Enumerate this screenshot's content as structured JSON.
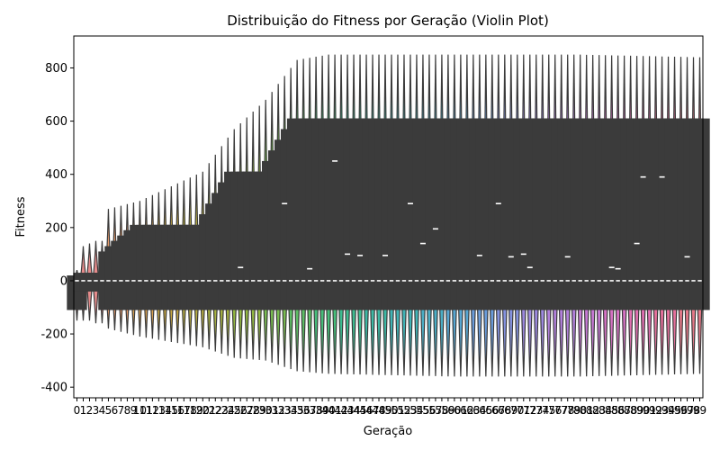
{
  "chart_data": {
    "type": "violin",
    "title": "Distribuição do Fitness por Geração (Violin Plot)",
    "xlabel": "Geração",
    "ylabel": "Fitness",
    "ylim": [
      -440,
      920
    ],
    "yticks": [
      -400,
      -200,
      0,
      200,
      400,
      600,
      800
    ],
    "categories": [
      0,
      1,
      2,
      3,
      4,
      5,
      6,
      7,
      8,
      9,
      10,
      11,
      12,
      13,
      14,
      15,
      16,
      17,
      18,
      19,
      20,
      21,
      22,
      23,
      24,
      25,
      26,
      27,
      28,
      29,
      30,
      31,
      32,
      33,
      34,
      35,
      36,
      37,
      38,
      39,
      40,
      41,
      42,
      43,
      44,
      45,
      46,
      47,
      48,
      49,
      50,
      51,
      52,
      53,
      54,
      55,
      56,
      57,
      58,
      59,
      60,
      61,
      62,
      63,
      64,
      65,
      66,
      67,
      68,
      69,
      70,
      71,
      72,
      73,
      74,
      75,
      76,
      77,
      78,
      79,
      80,
      81,
      82,
      83,
      84,
      85,
      86,
      87,
      88,
      89,
      90,
      91,
      92,
      93,
      94,
      95,
      96,
      97,
      98,
      99
    ],
    "palette": [
      "#e58b8b",
      "#e59a6a",
      "#d8a050",
      "#c8a840",
      "#b8ae40",
      "#a8b440",
      "#92b840",
      "#78bc50",
      "#5cbe64",
      "#46be7a",
      "#3cbc90",
      "#3cb8a4",
      "#40b4b6",
      "#4aaec6",
      "#56a6d2",
      "#6a9cdc",
      "#8492e0",
      "#9c88e0",
      "#b280dc",
      "#c678d4",
      "#d672c4",
      "#e06eb0",
      "#e6709c",
      "#e67888"
    ],
    "summary": [
      {
        "gen": 0,
        "max": 40,
        "min": -150,
        "q1": -110,
        "q3": 20,
        "median": 0
      },
      {
        "gen": 1,
        "max": 130,
        "min": -150,
        "q1": -40,
        "q3": 30,
        "median": 0
      },
      {
        "gen": 2,
        "max": 140,
        "min": -150,
        "q1": -40,
        "q3": 30,
        "median": 0
      },
      {
        "gen": 3,
        "max": 150,
        "min": -160,
        "q1": -40,
        "q3": 30,
        "median": 0
      },
      {
        "gen": 4,
        "max": 150,
        "min": -160,
        "q1": -40,
        "q3": 30,
        "median": 0
      },
      {
        "gen": 5,
        "max": 270,
        "min": -180,
        "q1": -110,
        "q3": 110,
        "median": 0
      },
      {
        "gen": 10,
        "max": 300,
        "min": -210,
        "q1": -110,
        "q3": 210,
        "median": 0
      },
      {
        "gen": 20,
        "max": 410,
        "min": -250,
        "q1": -110,
        "q3": 210,
        "median": 0
      },
      {
        "gen": 25,
        "max": 570,
        "min": -290,
        "q1": -110,
        "q3": 410,
        "median": 0
      },
      {
        "gen": 30,
        "max": 680,
        "min": -300,
        "q1": -110,
        "q3": 410,
        "median": 0
      },
      {
        "gen": 35,
        "max": 830,
        "min": -340,
        "q1": -110,
        "q3": 610,
        "median": 0
      },
      {
        "gen": 40,
        "max": 850,
        "min": -350,
        "q1": -110,
        "q3": 610,
        "median": 0
      },
      {
        "gen": 60,
        "max": 850,
        "min": -360,
        "q1": -110,
        "q3": 610,
        "median": 0
      },
      {
        "gen": 80,
        "max": 850,
        "min": -360,
        "q1": -110,
        "q3": 610,
        "median": 0
      },
      {
        "gen": 99,
        "max": 840,
        "min": -350,
        "q1": -110,
        "q3": 610,
        "median": 0
      }
    ],
    "mean_markers": [
      {
        "gen": 26,
        "value": 50
      },
      {
        "gen": 33,
        "value": 290
      },
      {
        "gen": 37,
        "value": 45
      },
      {
        "gen": 41,
        "value": 450
      },
      {
        "gen": 43,
        "value": 100
      },
      {
        "gen": 45,
        "value": 95
      },
      {
        "gen": 53,
        "value": 290
      },
      {
        "gen": 55,
        "value": 140
      },
      {
        "gen": 57,
        "value": 195
      },
      {
        "gen": 64,
        "value": 95
      },
      {
        "gen": 67,
        "value": 290
      },
      {
        "gen": 69,
        "value": 90
      },
      {
        "gen": 71,
        "value": 100
      },
      {
        "gen": 72,
        "value": 50
      },
      {
        "gen": 78,
        "value": 90
      },
      {
        "gen": 85,
        "value": 50
      },
      {
        "gen": 86,
        "value": 45
      },
      {
        "gen": 89,
        "value": 140
      },
      {
        "gen": 90,
        "value": 390
      },
      {
        "gen": 93,
        "value": 390
      },
      {
        "gen": 97,
        "value": 90
      },
      {
        "gen": 49,
        "value": 95
      }
    ],
    "grid": false,
    "legend": "none"
  }
}
